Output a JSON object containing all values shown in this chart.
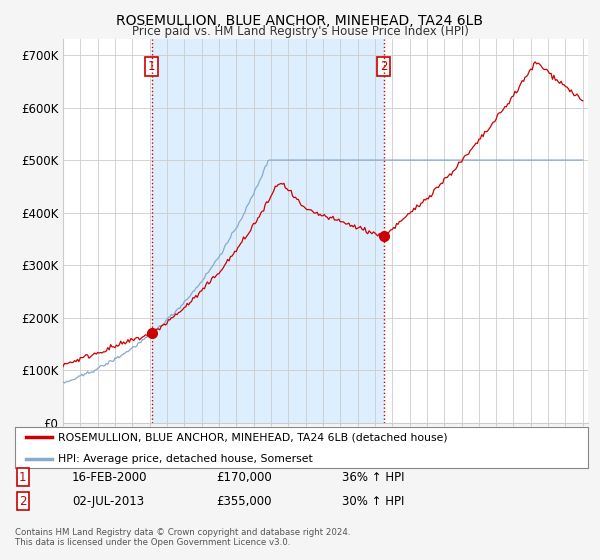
{
  "title": "ROSEMULLION, BLUE ANCHOR, MINEHEAD, TA24 6LB",
  "subtitle": "Price paid vs. HM Land Registry's House Price Index (HPI)",
  "ylim": [
    0,
    730000
  ],
  "yticks": [
    0,
    100000,
    200000,
    300000,
    400000,
    500000,
    600000,
    700000
  ],
  "ytick_labels": [
    "£0",
    "£100K",
    "£200K",
    "£300K",
    "£400K",
    "£500K",
    "£600K",
    "£700K"
  ],
  "xlim_start": 1995,
  "xlim_end": 2025.3,
  "sale1_x": 2000.12,
  "sale1_y": 170000,
  "sale1_date": "16-FEB-2000",
  "sale1_price": "£170,000",
  "sale1_pct": "36% ↑ HPI",
  "sale2_x": 2013.5,
  "sale2_y": 355000,
  "sale2_date": "02-JUL-2013",
  "sale2_price": "£355,000",
  "sale2_pct": "30% ↑ HPI",
  "vline_color": "#cc0000",
  "red_line_color": "#cc0000",
  "blue_line_color": "#88aacc",
  "shade_color": "#ddeeff",
  "background_color": "#f5f5f5",
  "plot_bg_color": "#ffffff",
  "grid_color": "#cccccc",
  "legend_label_red": "ROSEMULLION, BLUE ANCHOR, MINEHEAD, TA24 6LB (detached house)",
  "legend_label_blue": "HPI: Average price, detached house, Somerset",
  "footer": "Contains HM Land Registry data © Crown copyright and database right 2024.\nThis data is licensed under the Open Government Licence v3.0."
}
